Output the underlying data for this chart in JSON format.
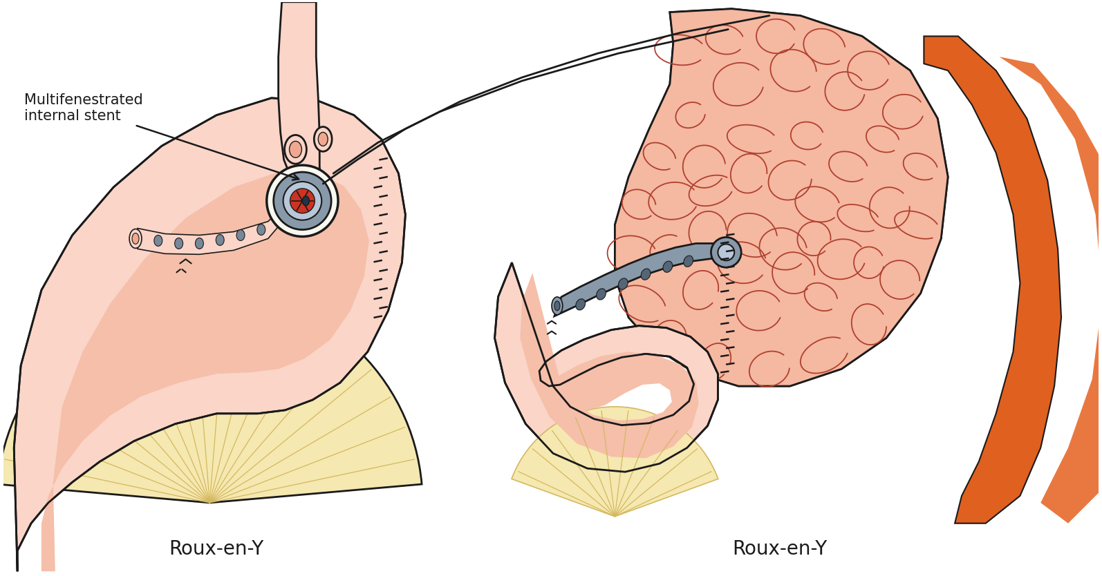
{
  "bg_color": "#ffffff",
  "fig_width": 15.94,
  "fig_height": 8.34,
  "label_left": "Multifenestrated\ninternal stent",
  "label_bottom_left": "Roux-en-Y",
  "label_bottom_right": "Roux-en-Y",
  "skin_pink": "#f5bfaa",
  "skin_light": "#fad5c8",
  "skin_mid": "#f0a890",
  "outline_color": "#1a1a1a",
  "stent_gray": "#8899aa",
  "stent_light": "#b8c8d8",
  "liver_pink": "#f5b8a0",
  "liver_orange": "#e06020",
  "liver_dark_orange": "#d05018",
  "liver_outline": "#b04030",
  "cream_color": "#f5e8b0",
  "cream_dark": "#d4b860",
  "red_inner": "#cc3322",
  "font_size_label": 15,
  "font_size_caption": 20,
  "lw_main": 2.0,
  "lw_light": 1.2
}
